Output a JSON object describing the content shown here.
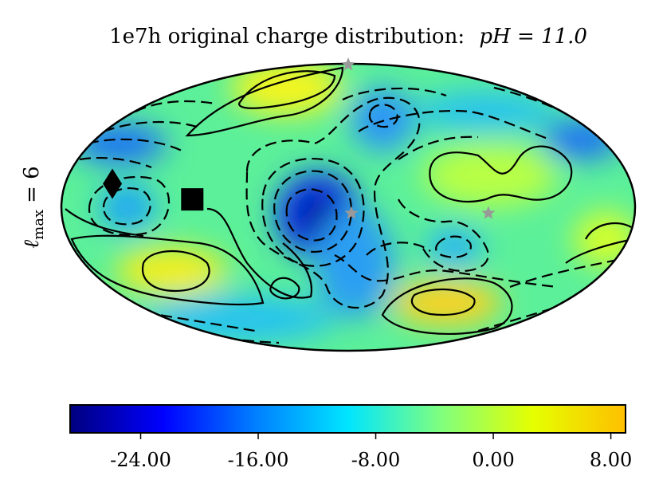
{
  "chart_data": {
    "type": "heatmap",
    "projection": "mollweide",
    "title": "1e7h original charge distribution: pH = 11.0",
    "title_prefix": "1e7h original charge distribution:",
    "title_math": "pH = 11.0",
    "ylabel": "ℓmax = 6",
    "ylabel_main": "ℓ",
    "ylabel_sub": "max",
    "ylabel_rest": "= 6",
    "colormap": "jet",
    "colormap_stops": [
      "#00007f",
      "#0000ff",
      "#007fff",
      "#00e5ff",
      "#7fff7f",
      "#e5ff00",
      "#ffbf00"
    ],
    "contour_color": "#000000",
    "colorbar": {
      "vmin": -28.8,
      "vmax": 9.0,
      "ticks": [
        -24,
        -16,
        -8,
        0,
        8
      ],
      "tick_labels": [
        "-24.00",
        "-16.00",
        "-8.00",
        "0.00",
        "8.00"
      ]
    },
    "markers": [
      {
        "shape": "diamond",
        "color": "#000000",
        "lon": -150,
        "lat": 12
      },
      {
        "shape": "square",
        "color": "#000000",
        "lon": -98,
        "lat": 4
      },
      {
        "shape": "star",
        "color": "#999999",
        "lon": 0,
        "lat": 88
      },
      {
        "shape": "star",
        "color": "#999999",
        "lon": 2,
        "lat": -3
      },
      {
        "shape": "star",
        "color": "#999999",
        "lon": 88,
        "lat": -3
      }
    ]
  }
}
